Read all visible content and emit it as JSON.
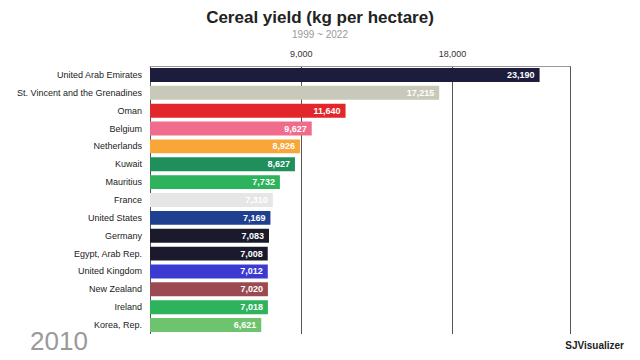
{
  "chart_data": {
    "type": "bar",
    "orientation": "horizontal",
    "title": "Cereal yield (kg per hectare)",
    "subtitle": "1999 ~ 2022",
    "categories": [
      "United Arab Emirates",
      "St. Vincent and the Grenadines",
      "Oman",
      "Belgium",
      "Netherlands",
      "Kuwait",
      "Mauritius",
      "France",
      "United States",
      "Germany",
      "Egypt, Arab Rep.",
      "United Kingdom",
      "New Zealand",
      "Ireland",
      "Korea, Rep."
    ],
    "values": [
      23190,
      17215,
      11640,
      9627,
      8926,
      8627,
      7732,
      7310,
      7169,
      7083,
      7008,
      7012,
      7020,
      7018,
      6621
    ],
    "value_labels": [
      "23,190",
      "17,215",
      "11,640",
      "9,627",
      "8,926",
      "8,627",
      "7,732",
      "7,310",
      "7,169",
      "7,083",
      "7,008",
      "7,012",
      "7,020",
      "7,018",
      "6,621"
    ],
    "colors": [
      "#1c1c3c",
      "#c9c9b9",
      "#e3262c",
      "#f06c8c",
      "#f7a637",
      "#1f8f5c",
      "#2db35c",
      "#e6e6e6",
      "#1f3f91",
      "#1a1a2c",
      "#1a1a2c",
      "#3b3bd1",
      "#9b4a52",
      "#2db35c",
      "#6ec46e"
    ],
    "data_labels": true,
    "xlim": [
      0,
      25000
    ],
    "xticks": [
      {
        "value": 9000,
        "label": "9,000"
      },
      {
        "value": 18000,
        "label": "18,000"
      }
    ],
    "grid": true,
    "annotations": [
      "2010",
      "SJVisualizer"
    ]
  }
}
